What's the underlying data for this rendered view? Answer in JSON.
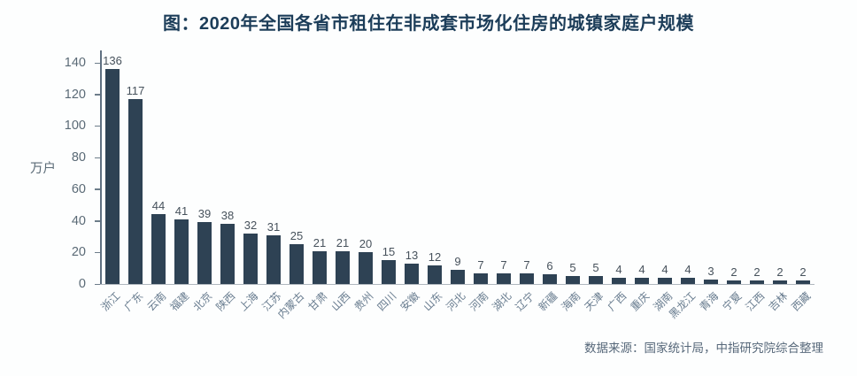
{
  "title": "图：2020年全国各省市租住在非成套市场化住房的城镇家庭户规模",
  "y_unit": "万户",
  "source": "数据来源：国家统计局，中指研究院综合整理",
  "colors": {
    "bar": "#2e4254",
    "title": "#1c3d59",
    "value_label": "#47525c",
    "y_tick_label": "#5a6a76",
    "x_tick_label": "#687c8f",
    "source_text": "#57687a",
    "axis_line": "#5f7081",
    "baseline": "#b0b8be",
    "background": "#fdfefe"
  },
  "chart_data": {
    "type": "bar",
    "title": "图：2020年全国各省市租住在非成套市场化住房的城镇家庭户规模",
    "categories": [
      "浙江",
      "广东",
      "云南",
      "福建",
      "北京",
      "陕西",
      "上海",
      "江苏",
      "内蒙古",
      "甘肃",
      "山西",
      "贵州",
      "四川",
      "安徽",
      "山东",
      "河北",
      "河南",
      "湖北",
      "辽宁",
      "新疆",
      "海南",
      "天津",
      "广西",
      "重庆",
      "湖南",
      "黑龙江",
      "青海",
      "宁夏",
      "江西",
      "吉林",
      "西藏"
    ],
    "values": [
      136,
      117,
      44,
      41,
      39,
      38,
      32,
      31,
      25,
      21,
      21,
      20,
      15,
      13,
      12,
      9,
      7,
      7,
      7,
      6,
      5,
      5,
      4,
      4,
      4,
      4,
      3,
      2,
      2,
      2,
      2
    ],
    "xlabel": "",
    "ylabel": "万户",
    "ylim": [
      0,
      140
    ],
    "yticks": [
      0,
      20,
      40,
      60,
      80,
      100,
      120,
      140
    ],
    "grid": false,
    "legend": false,
    "bar_color": "#2e4254",
    "value_labels_shown": true
  }
}
